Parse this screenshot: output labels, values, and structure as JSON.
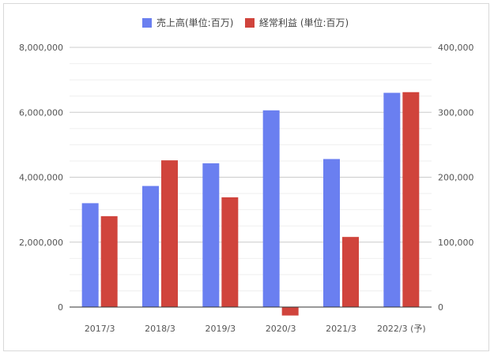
{
  "chart_data": {
    "type": "bar",
    "categories": [
      "2017/3",
      "2018/3",
      "2019/3",
      "2020/3",
      "2021/3",
      "2022/3 (予)"
    ],
    "series": [
      {
        "name": "売上高(単位:百万)",
        "axis": "left",
        "color": "#6a7ff0",
        "values": [
          3200000,
          3730000,
          4430000,
          6060000,
          4560000,
          6600000
        ]
      },
      {
        "name": "経常利益 (単位:百万)",
        "axis": "right",
        "color": "#d0443c",
        "values": [
          140000,
          226000,
          169000,
          -13000,
          108000,
          331000
        ]
      }
    ],
    "y_left": {
      "min": 0,
      "max": 8000000,
      "ticks": [
        0,
        2000000,
        4000000,
        6000000,
        8000000
      ],
      "tick_labels": [
        "0",
        "2,000,000",
        "4,000,000",
        "6,000,000",
        "8,000,000"
      ]
    },
    "y_right": {
      "min": 0,
      "max": 400000,
      "ticks": [
        0,
        100000,
        200000,
        300000,
        400000
      ],
      "tick_labels": [
        "0",
        "100,000",
        "200,000",
        "300,000",
        "400,000"
      ]
    },
    "grid": true,
    "minor_grid": true,
    "legend_position": "top-center",
    "xlabel": "",
    "ylabel": ""
  }
}
